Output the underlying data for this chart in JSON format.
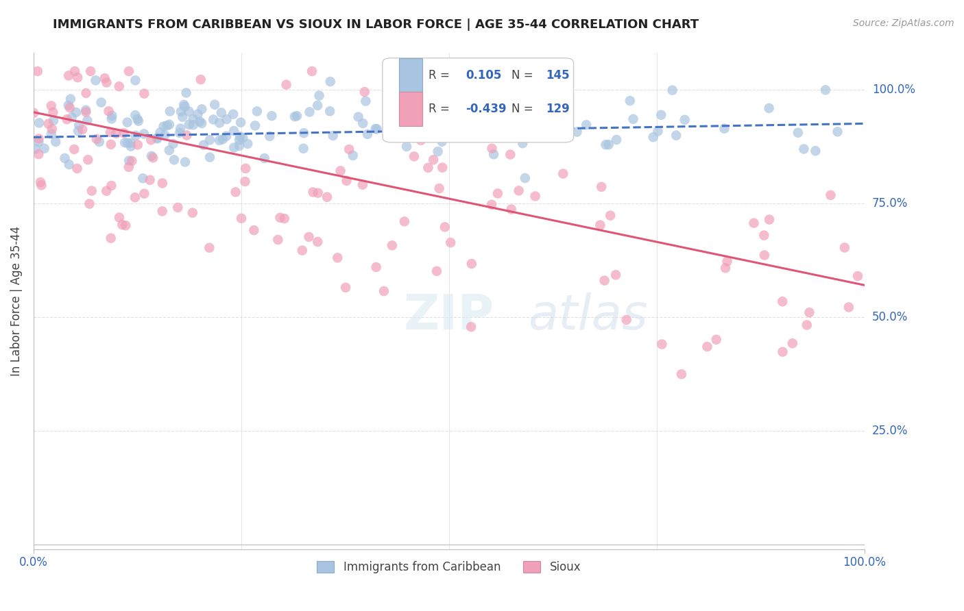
{
  "title": "IMMIGRANTS FROM CARIBBEAN VS SIOUX IN LABOR FORCE | AGE 35-44 CORRELATION CHART",
  "source": "Source: ZipAtlas.com",
  "ylabel": "In Labor Force | Age 35-44",
  "xlim": [
    0.0,
    1.0
  ],
  "ylim": [
    0.0,
    1.05
  ],
  "r_blue": 0.105,
  "n_blue": 145,
  "r_pink": -0.439,
  "n_pink": 129,
  "dot_blue_color": "#a8c4e0",
  "dot_pink_color": "#f0a0b8",
  "trend_blue_color": "#4472c4",
  "trend_pink_color": "#e05575",
  "background_color": "#ffffff",
  "grid_color": "#e0e0e0",
  "title_color": "#222222",
  "source_color": "#999999",
  "label_color": "#444444",
  "tick_color": "#3366bb",
  "r_value_color": "#3366bb",
  "n_value_color": "#3366bb",
  "legend_label_color": "#444444"
}
